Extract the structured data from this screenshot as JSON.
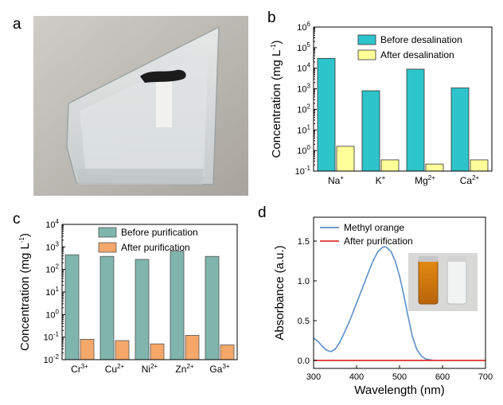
{
  "panels": {
    "a": {
      "letter": "a"
    },
    "b": {
      "letter": "b"
    },
    "c": {
      "letter": "c"
    },
    "d": {
      "letter": "d"
    }
  },
  "colors": {
    "teal_bar": "#2ec4cc",
    "yellow_bar": "#ffff99",
    "gray_teal_bar": "#7fb5ad",
    "orange_bar": "#f5a86a",
    "methyl_line": "#5b8fc7",
    "after_line": "#e03030"
  },
  "chart_data": [
    {
      "panel": "b",
      "type": "bar",
      "log_scale": true,
      "categories": [
        "Na",
        "K",
        "Mg",
        "Ca"
      ],
      "category_superscripts": [
        "+",
        "+",
        "2+",
        "2+"
      ],
      "series": [
        {
          "name": "Before desalination",
          "values": [
            30000,
            800,
            9000,
            1100
          ]
        },
        {
          "name": "After desalination",
          "values": [
            1.6,
            0.35,
            0.22,
            0.35
          ]
        }
      ],
      "ylabel": "Concentration (mg L",
      "ylabel_superscript": "-1",
      "ylabel_close": ")",
      "ylim": [
        0.1,
        1000000
      ],
      "yticks": [
        {
          "base": "10",
          "exp": "-1",
          "value": 0.1
        },
        {
          "base": "10",
          "exp": "0",
          "value": 1
        },
        {
          "base": "10",
          "exp": "1",
          "value": 10
        },
        {
          "base": "10",
          "exp": "2",
          "value": 100
        },
        {
          "base": "10",
          "exp": "3",
          "value": 1000
        },
        {
          "base": "10",
          "exp": "4",
          "value": 10000
        },
        {
          "base": "10",
          "exp": "5",
          "value": 100000
        },
        {
          "base": "10",
          "exp": "6",
          "value": 1000000
        }
      ],
      "legend_position": "top-right"
    },
    {
      "panel": "c",
      "type": "bar",
      "log_scale": true,
      "categories": [
        "Cr",
        "Cu",
        "Ni",
        "Zn",
        "Ga"
      ],
      "category_superscripts": [
        "3+",
        "2+",
        "2+",
        "2+",
        "3+"
      ],
      "series": [
        {
          "name": "Before purification",
          "values": [
            450,
            380,
            280,
            650,
            380
          ]
        },
        {
          "name": "After purification",
          "values": [
            0.08,
            0.07,
            0.05,
            0.12,
            0.045
          ]
        }
      ],
      "ylabel": "Concentration (mg L",
      "ylabel_superscript": "-1",
      "ylabel_close": ")",
      "ylim": [
        0.01,
        10000
      ],
      "yticks": [
        {
          "base": "10",
          "exp": "-2",
          "value": 0.01
        },
        {
          "base": "10",
          "exp": "-1",
          "value": 0.1
        },
        {
          "base": "10",
          "exp": "0",
          "value": 1
        },
        {
          "base": "10",
          "exp": "1",
          "value": 10
        },
        {
          "base": "10",
          "exp": "2",
          "value": 100
        },
        {
          "base": "10",
          "exp": "3",
          "value": 1000
        },
        {
          "base": "10",
          "exp": "4",
          "value": 10000
        }
      ],
      "legend_position": "top-center"
    },
    {
      "panel": "d",
      "type": "line",
      "xlabel": "Wavelength",
      "xlabel_unit": "(nm)",
      "ylabel": "Absorbance (a.u.)",
      "xlim": [
        300,
        700
      ],
      "ylim": [
        -0.1,
        1.8
      ],
      "xticks": [
        300,
        400,
        500,
        600,
        700
      ],
      "yticks": [
        "0.0",
        "0.5",
        "1.0",
        "1.5"
      ],
      "ytick_values": [
        0.0,
        0.5,
        1.0,
        1.5
      ],
      "series": [
        {
          "name": "Methyl orange",
          "x": [
            300,
            310,
            320,
            330,
            340,
            350,
            360,
            370,
            380,
            390,
            400,
            410,
            420,
            430,
            440,
            450,
            460,
            465,
            470,
            480,
            490,
            500,
            510,
            520,
            530,
            540,
            550,
            560,
            570,
            580
          ],
          "y": [
            0.28,
            0.24,
            0.18,
            0.13,
            0.11,
            0.14,
            0.22,
            0.33,
            0.45,
            0.58,
            0.72,
            0.86,
            1.0,
            1.14,
            1.27,
            1.37,
            1.42,
            1.43,
            1.42,
            1.37,
            1.25,
            1.06,
            0.82,
            0.55,
            0.3,
            0.14,
            0.06,
            0.02,
            0.01,
            0.0
          ]
        },
        {
          "name": "After purification",
          "x": [
            300,
            700
          ],
          "y": [
            0.0,
            0.0
          ]
        }
      ],
      "legend_position": "top-left"
    }
  ]
}
